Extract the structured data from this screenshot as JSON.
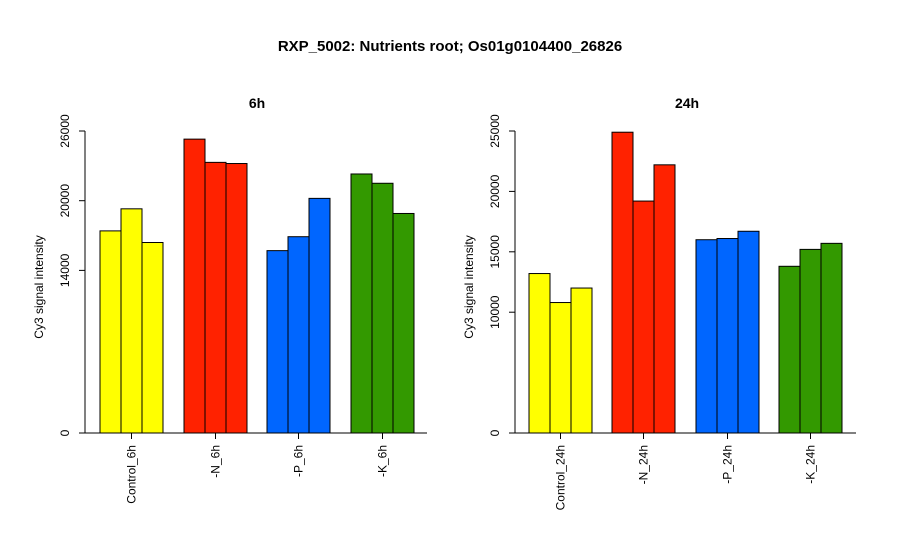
{
  "title": "RXP_5002: Nutrients root; Os01g0104400_26826",
  "chart_data": [
    {
      "type": "bar",
      "title": "6h",
      "ylabel": "Cy3 signal intensity",
      "xlabel": "",
      "ylim": [
        0,
        26000
      ],
      "yticks": [
        0,
        14000,
        20000,
        26000
      ],
      "groups": [
        {
          "label": "Control_6h",
          "color": "#FFFF00",
          "values": [
            17400,
            19300,
            16400
          ]
        },
        {
          "label": "-N_6h",
          "color": "#FF2200",
          "values": [
            25300,
            23300,
            23200
          ]
        },
        {
          "label": "-P_6h",
          "color": "#0066FF",
          "values": [
            15700,
            16900,
            20200
          ]
        },
        {
          "label": "-K_6h",
          "color": "#339900",
          "values": [
            22300,
            21500,
            18900
          ]
        }
      ]
    },
    {
      "type": "bar",
      "title": "24h",
      "ylabel": "Cy3 signal intensity",
      "xlabel": "",
      "ylim": [
        0,
        25000
      ],
      "yticks": [
        0,
        10000,
        15000,
        20000,
        25000
      ],
      "groups": [
        {
          "label": "Control_24h",
          "color": "#FFFF00",
          "values": [
            13200,
            10800,
            12000
          ]
        },
        {
          "label": "-N_24h",
          "color": "#FF2200",
          "values": [
            24900,
            19200,
            22200
          ]
        },
        {
          "label": "-P_24h",
          "color": "#0066FF",
          "values": [
            16000,
            16100,
            16700
          ]
        },
        {
          "label": "-K_24h",
          "color": "#339900",
          "values": [
            13800,
            15200,
            15700
          ]
        }
      ]
    }
  ]
}
